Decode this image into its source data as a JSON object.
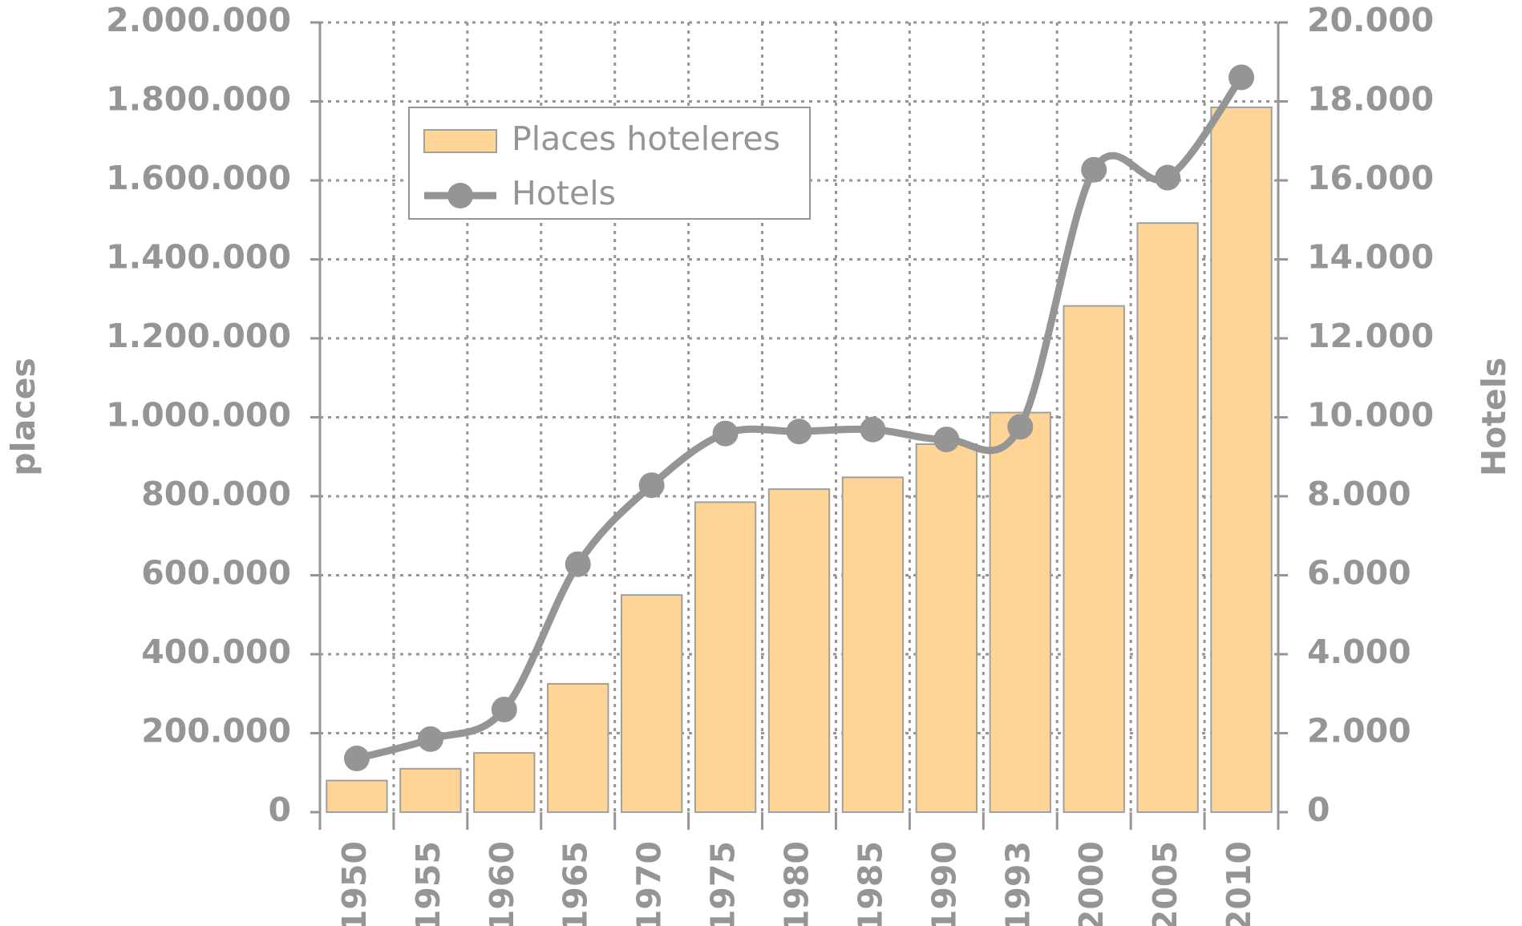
{
  "chart_data": {
    "type": "bar-line",
    "categories": [
      "1950",
      "1955",
      "1960",
      "1965",
      "1970",
      "1975",
      "1980",
      "1985",
      "1990",
      "1993",
      "2000",
      "2005",
      "2010"
    ],
    "series": [
      {
        "name": "Places hoteleres",
        "type": "bar",
        "color": "#fed597",
        "values": [
          80000,
          110000,
          150000,
          325000,
          550000,
          785000,
          818000,
          848000,
          932000,
          1012000,
          1282000,
          1492000,
          1785000
        ]
      },
      {
        "name": "Hotels",
        "type": "line",
        "axis": "y2",
        "color": "#959595",
        "values": [
          1360,
          1850,
          2600,
          6280,
          8280,
          9590,
          9640,
          9690,
          9440,
          9760,
          16270,
          16070,
          18610
        ]
      }
    ],
    "ylabel": "places",
    "y2label": "Hotels",
    "ylim": [
      0,
      2000000
    ],
    "yticks": [
      0,
      {
        "value": 200000,
        "label": "200.000"
      },
      {
        "value": 400000,
        "label": "400.000"
      },
      {
        "value": 600000,
        "label": "600.000"
      },
      {
        "value": 800000,
        "label": "800.000"
      },
      {
        "value": 1000000,
        "label": "1.000.000"
      },
      {
        "value": 1200000,
        "label": "1.200.000"
      },
      {
        "value": 1400000,
        "label": "1.400.000"
      },
      {
        "value": 1600000,
        "label": "1.600.000"
      },
      {
        "value": 1800000,
        "label": "1.800.000"
      },
      {
        "value": 2000000,
        "label": "2.000.000"
      }
    ],
    "y2lim": [
      0,
      20000
    ],
    "y2ticks": [
      0,
      {
        "value": 2000,
        "label": "2.000"
      },
      {
        "value": 4000,
        "label": "4.000"
      },
      {
        "value": 6000,
        "label": "6.000"
      },
      {
        "value": 8000,
        "label": "8.000"
      },
      {
        "value": 10000,
        "label": "10.000"
      },
      {
        "value": 12000,
        "label": "12.000"
      },
      {
        "value": 14000,
        "label": "14.000"
      },
      {
        "value": 16000,
        "label": "16.000"
      },
      {
        "value": 18000,
        "label": "18.000"
      },
      {
        "value": 20000,
        "label": "20.000"
      }
    ],
    "grid": true,
    "legend": "upper left"
  }
}
